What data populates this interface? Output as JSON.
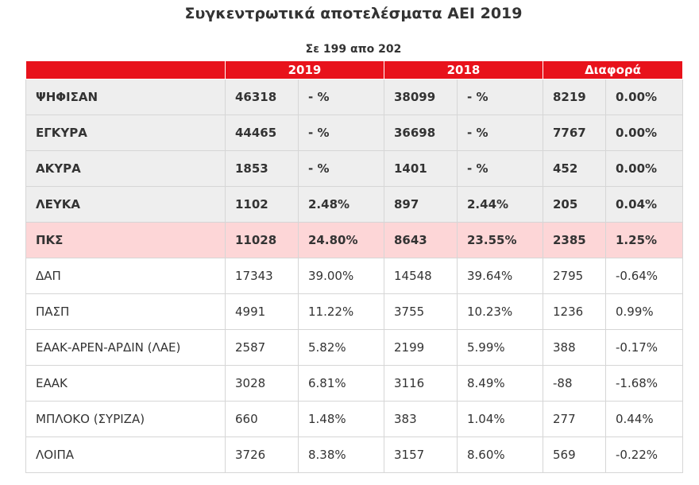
{
  "title": "Συγκεντρωτικά αποτελέσματα ΑΕΙ 2019",
  "subtitle": "Σε 199 απο 202",
  "table": {
    "header": [
      "2019",
      "2018",
      "Διαφορά"
    ],
    "rows": [
      [
        "ΨΗΦΙΣΑΝ",
        "46318",
        "- %",
        "38099",
        "- %",
        "8219",
        "0.00%"
      ],
      [
        "ΕΓΚΥΡΑ",
        "44465",
        "- %",
        "36698",
        "- %",
        "7767",
        "0.00%"
      ],
      [
        "ΑΚΥΡΑ",
        "1853",
        "- %",
        "1401",
        "- %",
        "452",
        "0.00%"
      ],
      [
        "ΛΕΥΚΑ",
        "1102",
        "2.48%",
        "897",
        "2.44%",
        "205",
        "0.04%"
      ],
      [
        "ΠΚΣ",
        "11028",
        "24.80%",
        "8643",
        "23.55%",
        "2385",
        "1.25%"
      ],
      [
        "ΔΑΠ",
        "17343",
        "39.00%",
        "14548",
        "39.64%",
        "2795",
        "-0.64%"
      ],
      [
        "ΠΑΣΠ",
        "4991",
        "11.22%",
        "3755",
        "10.23%",
        "1236",
        "0.99%"
      ],
      [
        "ΕΑΑΚ-ΑΡΕΝ-ΑΡΔΙΝ (ΛΑΕ)",
        "2587",
        "5.82%",
        "2199",
        "5.99%",
        "388",
        "-0.17%"
      ],
      [
        "ΕΑΑΚ",
        "3028",
        "6.81%",
        "3116",
        "8.49%",
        "-88",
        "-1.68%"
      ],
      [
        "ΜΠΛΟΚΟ (ΣΥΡΙΖΑ)",
        "660",
        "1.48%",
        "383",
        "1.04%",
        "277",
        "0.44%"
      ],
      [
        "ΛΟΙΠΑ",
        "3726",
        "8.38%",
        "3157",
        "8.60%",
        "569",
        "-0.22%"
      ]
    ]
  }
}
